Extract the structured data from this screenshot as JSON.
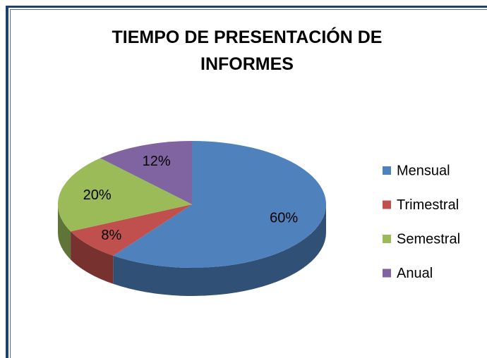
{
  "chart_data": {
    "type": "pie",
    "title": "TIEMPO DE PRESENTACIÓN DE INFORMES",
    "categories": [
      "Mensual",
      "Trimestral",
      "Semestral",
      "Anual"
    ],
    "values": [
      60,
      8,
      20,
      12
    ],
    "value_labels": [
      "60%",
      "8%",
      "20%",
      "12%"
    ],
    "colors": [
      "#4f81bd",
      "#c0504d",
      "#9bbb59",
      "#8064a2"
    ],
    "legend": "right"
  }
}
